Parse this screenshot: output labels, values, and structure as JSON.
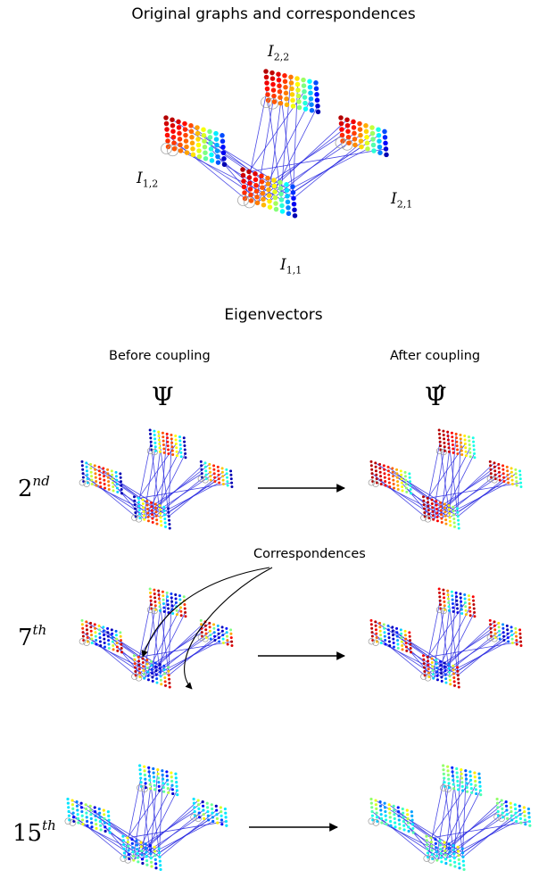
{
  "title": "Original graphs and correspondences",
  "graph_labels": {
    "i11": {
      "base": "I",
      "sub": "1,1"
    },
    "i12": {
      "base": "I",
      "sub": "1,2"
    },
    "i21": {
      "base": "I",
      "sub": "2,1"
    },
    "i22": {
      "base": "I",
      "sub": "2,2"
    }
  },
  "eigen_title": "Eigenvectors",
  "before_label": "Before coupling",
  "after_label": "After coupling",
  "psi_symbol": "Ψ",
  "psi_hat_symbol": "Ψ̂",
  "rows": [
    {
      "base": "2",
      "sup": "nd"
    },
    {
      "base": "7",
      "sup": "th"
    },
    {
      "base": "15",
      "sup": "th"
    }
  ],
  "correspondences_label": "Correspondences",
  "colors": {
    "edges": "#2a2ae0",
    "arrow": "#000000"
  }
}
